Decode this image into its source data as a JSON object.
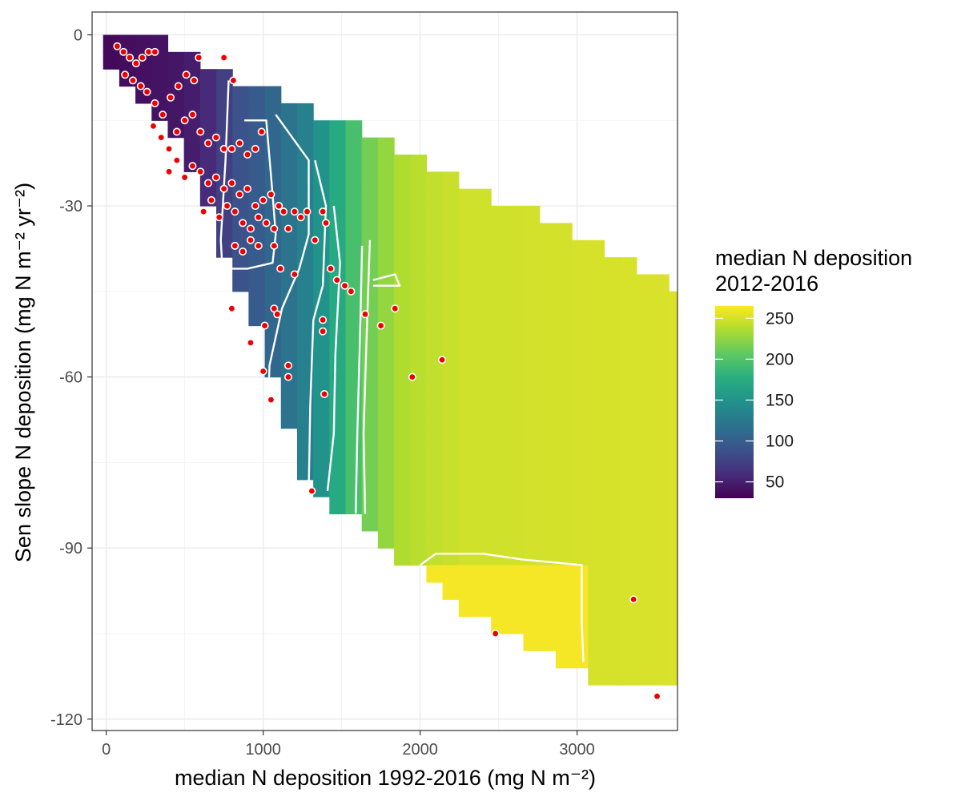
{
  "chart_data": {
    "type": "heatmap",
    "xlabel": "median N deposition 1992-2016 (mg N m⁻²)",
    "ylabel": "Sen slope N deposition (mg N m⁻² yr⁻²)",
    "xlim": [
      -90,
      3640
    ],
    "ylim": [
      -122,
      4
    ],
    "x_ticks": [
      0,
      1000,
      2000,
      3000
    ],
    "x_tick_labels": [
      "0",
      "1000",
      "2000",
      "3000"
    ],
    "y_ticks": [
      0,
      -30,
      -60,
      -90,
      -120
    ],
    "y_tick_labels": [
      "0",
      "-30",
      "-60",
      "-90",
      "-120"
    ],
    "grid": true,
    "fill_scale": {
      "name": "median N deposition 2012-2016",
      "palette": "viridis",
      "min": 30,
      "max": 265,
      "breaks": [
        50,
        100,
        150,
        200,
        250
      ],
      "break_labels": [
        "50",
        "100",
        "150",
        "200",
        "250"
      ]
    },
    "legend_position": "right",
    "surface_band": {
      "comment_free": true,
      "rows": [
        [
          -1,
          2,
          3
        ],
        [
          -4,
          0,
          5
        ],
        [
          -8,
          60,
          8
        ],
        [
          -14,
          270,
          11
        ],
        [
          -20,
          480,
          14
        ],
        [
          -27,
          620,
          17
        ],
        [
          -33,
          700,
          21
        ],
        [
          -40,
          760,
          25
        ],
        [
          -46,
          860,
          28
        ],
        [
          -52,
          970,
          31
        ],
        [
          -58,
          1050,
          34
        ],
        [
          -64,
          1110,
          37
        ],
        [
          -70,
          1160,
          43
        ],
        [
          -77,
          1260,
          49
        ],
        [
          -82,
          1440,
          55
        ],
        [
          -87,
          1660,
          62
        ],
        [
          -91,
          1800,
          73
        ],
        [
          -95,
          2080,
          80
        ],
        [
          -100,
          2250,
          88
        ],
        [
          -105,
          2550,
          99
        ],
        [
          -109,
          2840,
          107
        ],
        [
          -113,
          3160,
          112
        ],
        [
          -115,
          3170,
          112
        ]
      ]
    },
    "contours": [
      {
        "level": 75,
        "points": [
          [
            780,
            -8
          ],
          [
            760,
            -22
          ],
          [
            730,
            -36
          ],
          [
            740,
            -41
          ]
        ]
      },
      {
        "level": 100,
        "points": [
          [
            880,
            -15
          ],
          [
            1020,
            -15
          ],
          [
            1060,
            -28
          ],
          [
            1080,
            -35
          ],
          [
            1060,
            -40
          ],
          [
            900,
            -41
          ],
          [
            760,
            -41
          ]
        ]
      },
      {
        "level": 125,
        "points": [
          [
            1080,
            -14
          ],
          [
            1290,
            -22
          ],
          [
            1290,
            -35
          ],
          [
            1230,
            -41
          ],
          [
            1120,
            -48
          ],
          [
            1040,
            -58
          ],
          [
            1030,
            -68
          ]
        ]
      },
      {
        "level": 150,
        "points": [
          [
            1330,
            -22
          ],
          [
            1400,
            -30
          ],
          [
            1380,
            -44
          ],
          [
            1320,
            -50
          ],
          [
            1300,
            -65
          ],
          [
            1290,
            -80
          ]
        ]
      },
      {
        "level": 175,
        "points": [
          [
            1450,
            -30
          ],
          [
            1490,
            -40
          ],
          [
            1460,
            -56
          ],
          [
            1450,
            -70
          ],
          [
            1410,
            -80
          ]
        ]
      },
      {
        "level": 200,
        "points": [
          [
            1630,
            -37
          ],
          [
            1620,
            -50
          ],
          [
            1600,
            -70
          ],
          [
            1590,
            -84
          ]
        ]
      },
      {
        "level": 225,
        "points": [
          [
            1680,
            -36
          ],
          [
            1660,
            -52
          ],
          [
            1640,
            -70
          ],
          [
            1650,
            -84
          ]
        ]
      },
      {
        "level": 250,
        "points": [
          [
            1700,
            -43
          ],
          [
            1840,
            -42
          ],
          [
            1870,
            -44
          ],
          [
            1700,
            -44
          ]
        ]
      },
      {
        "level": 260,
        "points": [
          [
            2000,
            -93
          ],
          [
            2100,
            -91
          ],
          [
            2400,
            -91
          ],
          [
            2650,
            -92
          ],
          [
            3030,
            -93
          ],
          [
            3030,
            -103
          ],
          [
            3040,
            -110
          ]
        ]
      }
    ],
    "points": [
      [
        70,
        -2
      ],
      [
        110,
        -3
      ],
      [
        150,
        -4
      ],
      [
        190,
        -5
      ],
      [
        230,
        -4
      ],
      [
        270,
        -3
      ],
      [
        310,
        -3
      ],
      [
        120,
        -7
      ],
      [
        170,
        -8
      ],
      [
        220,
        -9
      ],
      [
        260,
        -10
      ],
      [
        310,
        -12
      ],
      [
        360,
        -14
      ],
      [
        410,
        -11
      ],
      [
        460,
        -9
      ],
      [
        510,
        -7
      ],
      [
        560,
        -8
      ],
      [
        590,
        -4
      ],
      [
        750,
        -4
      ],
      [
        810,
        -8
      ],
      [
        300,
        -16
      ],
      [
        350,
        -18
      ],
      [
        400,
        -20
      ],
      [
        450,
        -17
      ],
      [
        500,
        -15
      ],
      [
        550,
        -14
      ],
      [
        600,
        -17
      ],
      [
        650,
        -19
      ],
      [
        700,
        -18
      ],
      [
        750,
        -20
      ],
      [
        800,
        -20
      ],
      [
        850,
        -19
      ],
      [
        900,
        -21
      ],
      [
        950,
        -20
      ],
      [
        990,
        -17
      ],
      [
        400,
        -24
      ],
      [
        450,
        -22
      ],
      [
        500,
        -25
      ],
      [
        550,
        -23
      ],
      [
        600,
        -24
      ],
      [
        650,
        -26
      ],
      [
        700,
        -25
      ],
      [
        750,
        -27
      ],
      [
        800,
        -26
      ],
      [
        850,
        -28
      ],
      [
        900,
        -27
      ],
      [
        950,
        -30
      ],
      [
        1000,
        -29
      ],
      [
        1050,
        -28
      ],
      [
        1100,
        -30
      ],
      [
        620,
        -31
      ],
      [
        670,
        -29
      ],
      [
        720,
        -32
      ],
      [
        770,
        -30
      ],
      [
        820,
        -31
      ],
      [
        870,
        -33
      ],
      [
        920,
        -34
      ],
      [
        970,
        -32
      ],
      [
        1020,
        -33
      ],
      [
        1070,
        -34
      ],
      [
        820,
        -37
      ],
      [
        870,
        -38
      ],
      [
        920,
        -36
      ],
      [
        970,
        -37
      ],
      [
        1070,
        -37
      ],
      [
        1130,
        -31
      ],
      [
        1160,
        -34
      ],
      [
        1200,
        -31
      ],
      [
        1240,
        -32
      ],
      [
        1280,
        -31
      ],
      [
        1330,
        -36
      ],
      [
        1380,
        -31
      ],
      [
        1400,
        -33
      ],
      [
        1430,
        -41
      ],
      [
        1470,
        -43
      ],
      [
        1520,
        -44
      ],
      [
        1560,
        -45
      ],
      [
        1110,
        -41
      ],
      [
        1200,
        -42
      ],
      [
        1070,
        -48
      ],
      [
        800,
        -48
      ],
      [
        920,
        -54
      ],
      [
        1010,
        -51
      ],
      [
        1090,
        -49
      ],
      [
        1160,
        -58
      ],
      [
        1160,
        -60
      ],
      [
        1000,
        -59
      ],
      [
        1050,
        -64
      ],
      [
        1380,
        -50
      ],
      [
        1380,
        -52
      ],
      [
        1390,
        -63
      ],
      [
        1650,
        -49
      ],
      [
        1750,
        -51
      ],
      [
        1840,
        -48
      ],
      [
        1950,
        -60
      ],
      [
        2140,
        -57
      ],
      [
        1310,
        -80
      ],
      [
        3360,
        -99
      ],
      [
        2480,
        -105
      ],
      [
        3510,
        -116
      ]
    ]
  }
}
